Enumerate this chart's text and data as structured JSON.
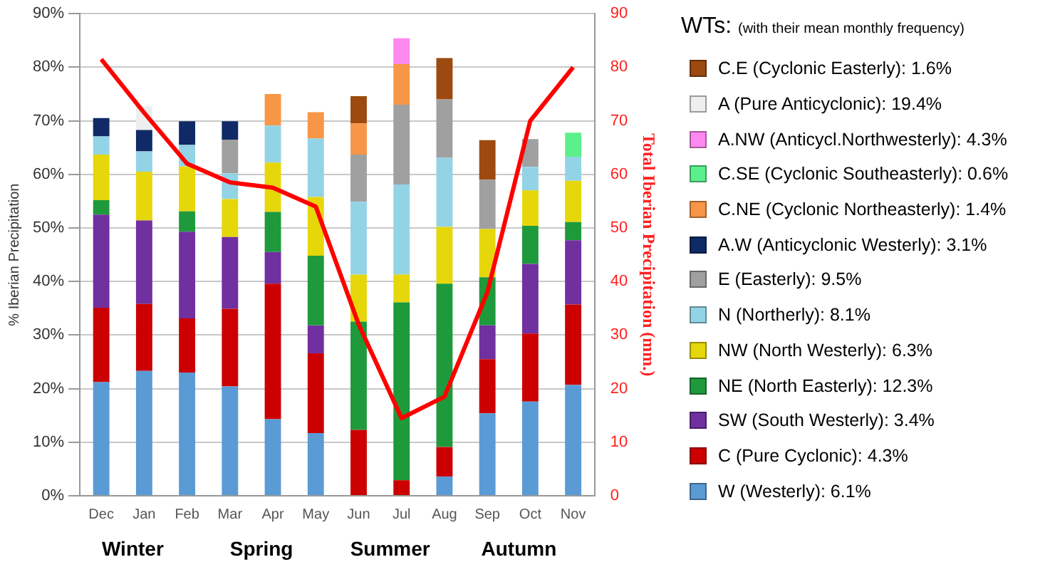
{
  "chart_data": {
    "type": "bar",
    "stacked": true,
    "categories": [
      "Dec",
      "Jan",
      "Feb",
      "Mar",
      "Apr",
      "May",
      "Jun",
      "Jul",
      "Aug",
      "Sep",
      "Oct",
      "Nov"
    ],
    "ylabel": "% Iberian Precipitation",
    "y2label": "Total Iberian Precipitation (mm.)",
    "legend_title": "WTs: (with their mean monthly frequency)",
    "ylim": [
      0,
      90
    ],
    "yticks": [
      {
        "value": 0,
        "label": "0%"
      },
      {
        "value": 10,
        "label": "10%"
      },
      {
        "value": 20,
        "label": "20%"
      },
      {
        "value": 30,
        "label": "30%"
      },
      {
        "value": 40,
        "label": "40%"
      },
      {
        "value": 50,
        "label": "50%"
      },
      {
        "value": 60,
        "label": "60%"
      },
      {
        "value": 70,
        "label": "70%"
      },
      {
        "value": 80,
        "label": "80%"
      },
      {
        "value": 90,
        "label": "90%"
      }
    ],
    "y2lim": [
      0,
      90
    ],
    "y2ticks": [
      0,
      10,
      20,
      30,
      40,
      50,
      60,
      70,
      80,
      90
    ],
    "grid": "y",
    "legend": "right",
    "annotations": [
      "Winter",
      "Spring",
      "Summer",
      "Autumn"
    ],
    "series": [
      {
        "name": "W (Westerly): 6.1%",
        "color": "#5b9bd5",
        "values": [
          21.2,
          23.3,
          23.0,
          20.4,
          14.3,
          11.7,
          null,
          null,
          3.6,
          15.4,
          17.6,
          20.7
        ]
      },
      {
        "name": "C (Pure Cyclonic): 4.3%",
        "color": "#cc0000",
        "values": [
          13.9,
          12.5,
          10.1,
          14.5,
          25.3,
          14.9,
          12.3,
          2.9,
          5.5,
          10.1,
          12.7,
          15.0
        ]
      },
      {
        "name": "SW (South Westerly): 3.4%",
        "color": "#7030a0",
        "values": [
          17.4,
          15.6,
          16.2,
          13.4,
          5.9,
          5.2,
          null,
          null,
          null,
          6.3,
          13.0,
          12.0
        ]
      },
      {
        "name": "NE (North Easterly): 12.3%",
        "color": "#1e9a3c",
        "values": [
          2.7,
          null,
          3.8,
          null,
          7.5,
          13.0,
          20.2,
          33.2,
          30.5,
          9.0,
          7.1,
          3.4
        ]
      },
      {
        "name": "NW (North Westerly): 6.3%",
        "color": "#e6d70a",
        "values": [
          8.5,
          9.1,
          8.4,
          7.1,
          9.2,
          11.0,
          8.8,
          5.2,
          10.6,
          9.0,
          6.6,
          7.7
        ]
      },
      {
        "name": "N (Northerly): 8.1%",
        "color": "#93d3e6",
        "values": [
          3.4,
          3.8,
          4.0,
          4.8,
          6.9,
          10.9,
          13.6,
          16.8,
          12.9,
          null,
          4.4,
          4.5
        ]
      },
      {
        "name": "E (Easterly): 9.5%",
        "color": "#a0a0a0",
        "values": [
          null,
          null,
          null,
          6.3,
          null,
          null,
          8.8,
          14.9,
          10.9,
          9.2,
          5.2,
          null
        ]
      },
      {
        "name": "A.W (Anticyclonic Westerly): 3.1%",
        "color": "#0f2a66",
        "values": [
          3.4,
          4.0,
          4.4,
          3.4,
          null,
          null,
          null,
          null,
          null,
          null,
          null,
          null
        ]
      },
      {
        "name": "C.NE (Cyclonic Northeasterly): 1.4%",
        "color": "#f79646",
        "values": [
          null,
          null,
          null,
          null,
          5.9,
          4.9,
          5.8,
          7.6,
          null,
          null,
          null,
          null
        ]
      },
      {
        "name": "C.SE (Cyclonic Southeasterly): 0.6%",
        "color": "#5cf08c",
        "values": [
          null,
          null,
          null,
          null,
          null,
          null,
          null,
          null,
          null,
          null,
          null,
          4.5
        ]
      },
      {
        "name": "A.NW (Anticycl.Northwesterly): 4.3%",
        "color": "#ff88f0",
        "values": [
          null,
          null,
          null,
          null,
          null,
          null,
          null,
          4.8,
          null,
          null,
          null,
          null
        ]
      },
      {
        "name": "A (Pure Anticyclonic): 19.4%",
        "color": "#eeeeee",
        "values": [
          null,
          4.4,
          null,
          null,
          null,
          null,
          null,
          null,
          null,
          null,
          null,
          null
        ]
      },
      {
        "name": "C.E (Cyclonic Easterly): 1.6%",
        "color": "#9c4a0f",
        "values": [
          null,
          null,
          null,
          null,
          null,
          null,
          5.1,
          null,
          7.7,
          7.4,
          null,
          null
        ]
      },
      {
        "type": "line",
        "axis": "y2",
        "color": "#ff0000",
        "values": [
          81.5,
          71.5,
          62,
          58.5,
          57.5,
          54,
          32,
          14.5,
          18.5,
          38,
          70,
          80
        ]
      }
    ]
  }
}
